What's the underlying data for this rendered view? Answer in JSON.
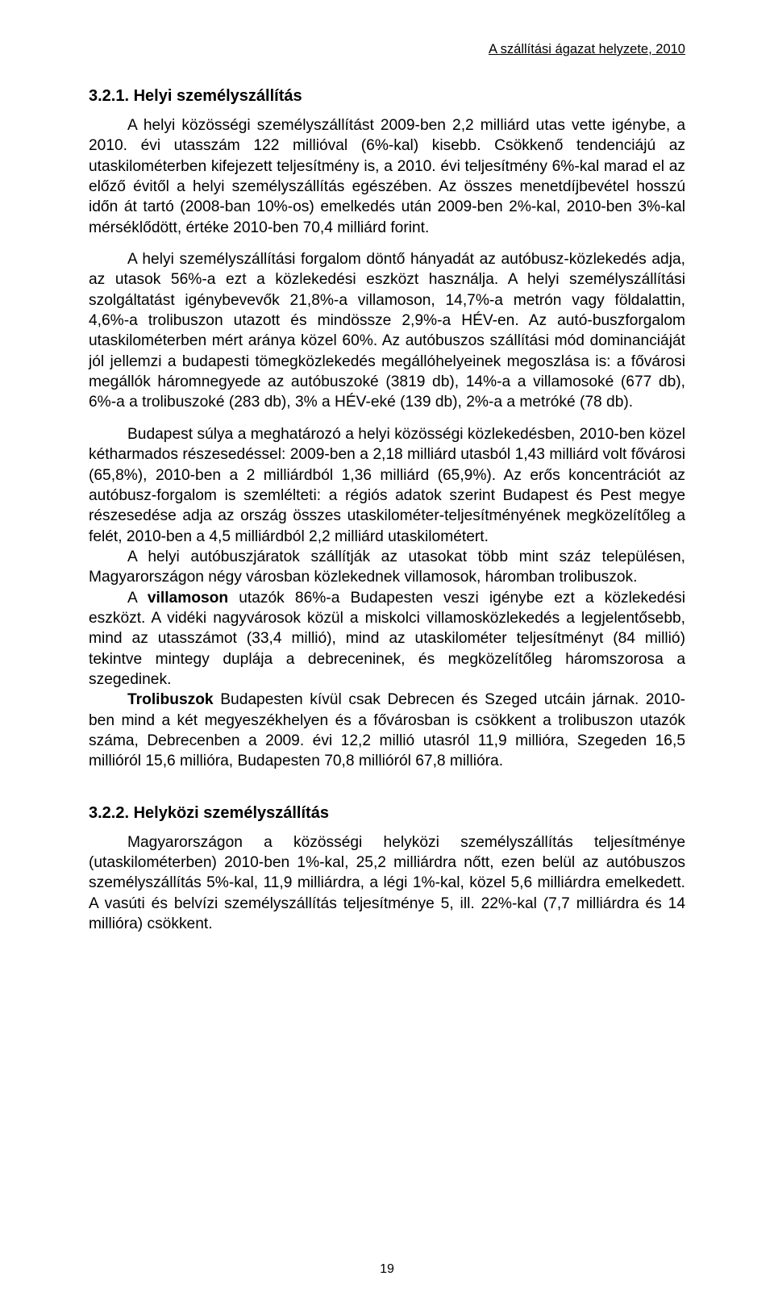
{
  "running_head": "A szállítási ágazat helyzete, 2010",
  "section_321_title": "3.2.1. Helyi személyszállítás",
  "p1": "A helyi közösségi személyszállítást 2009-ben 2,2 milliárd utas vette igénybe, a 2010. évi utasszám 122 millióval (6%-kal) kisebb. Csökkenő tendenciájú az utaskilométerben kifejezett teljesítmény is, a 2010. évi teljesítmény 6%-kal marad el az előző évitől a helyi személyszállítás egészében. Az összes menetdíjbevétel hosszú időn át tartó (2008-ban 10%-os) emelkedés után 2009-ben 2%-kal, 2010-ben 3%-kal mérséklődött, értéke 2010-ben 70,4 milliárd forint.",
  "p2": "A helyi személyszállítási forgalom döntő hányadát az autóbusz-közlekedés adja, az utasok 56%-a ezt a közlekedési eszközt használja. A helyi személyszállítási szolgáltatást igénybevevők 21,8%-a villamoson, 14,7%-a metrón vagy földalattin, 4,6%-a trolibuszon utazott és mindössze 2,9%-a HÉV-en. Az autó-buszforgalom utaskilométerben mért aránya közel 60%. Az autóbuszos szállítási mód dominanciáját jól jellemzi a budapesti tömegközlekedés megállóhelyeinek megoszlása is: a fővárosi megállók háromnegyede az autóbuszoké (3819 db), 14%-a a villamosoké (677 db), 6%-a a trolibuszoké (283 db), 3% a HÉV-eké (139 db), 2%-a a metróké (78 db).",
  "p3": "Budapest súlya a meghatározó a helyi közösségi közlekedésben, 2010-ben közel kétharmados részesedéssel: 2009-ben a 2,18 milliárd utasból 1,43 milliárd volt fővárosi (65,8%), 2010-ben a 2 milliárdból 1,36 milliárd (65,9%). Az erős koncentrációt az autóbusz-forgalom is szemlélteti: a régiós adatok szerint Budapest és Pest megye részesedése adja az ország összes utaskilométer-teljesítményének megközelítőleg a felét, 2010-ben a 4,5 milliárdból 2,2 milliárd utaskilométert.",
  "p4": "A helyi autóbuszjáratok szállítják az utasokat több mint száz településen, Magyarországon négy városban közlekednek villamosok, háromban trolibuszok.",
  "p5a": "A ",
  "p5_bold1": "villamoson",
  "p5b": " utazók 86%-a Budapesten veszi igénybe ezt a közlekedési eszközt. A vidéki nagyvárosok közül a miskolci villamosközlekedés a legjelentősebb, mind az utasszámot (33,4 millió), mind az utaskilométer teljesítményt (84 millió) tekintve mintegy duplája a debreceninek, és megközelítőleg háromszorosa a szegedinek.",
  "p6_bold": "Trolibuszok",
  "p6": " Budapesten kívül csak Debrecen és Szeged utcáin járnak. 2010-ben mind a két megyeszékhelyen és a fővárosban is csökkent a trolibuszon utazók száma, Debrecenben a 2009. évi 12,2 millió utasról 11,9 millióra, Szegeden 16,5 millióról 15,6 millióra, Budapesten 70,8 millióról 67,8 millióra.",
  "section_322_title": "3.2.2. Helyközi személyszállítás",
  "p7": "Magyarországon a közösségi helyközi személyszállítás teljesítménye (utaskilométerben) 2010-ben 1%-kal, 25,2 milliárdra nőtt, ezen belül az autóbuszos személyszállítás 5%-kal, 11,9 milliárdra, a légi 1%-kal, közel 5,6 milliárdra emelkedett. A vasúti és belvízi személyszállítás teljesítménye 5, ill. 22%-kal (7,7 milliárdra és 14 millióra) csökkent.",
  "page_number": "19"
}
